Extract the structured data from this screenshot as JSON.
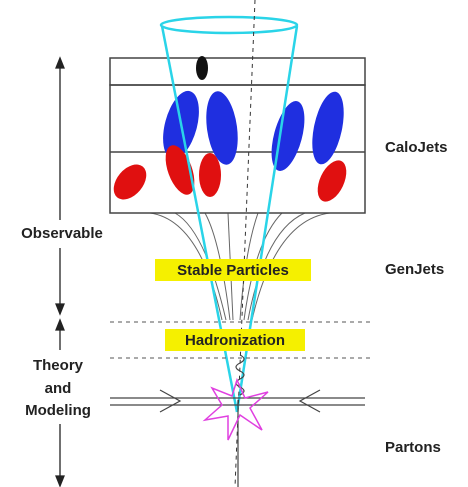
{
  "labels": {
    "calojets": "CaloJets",
    "genjets": "GenJets",
    "partons": "Partons",
    "stable_particles": "Stable Particles",
    "hadronization": "Hadronization",
    "observable": "Observable",
    "theory": [
      "Theory",
      "and",
      "Modeling"
    ]
  }
}
